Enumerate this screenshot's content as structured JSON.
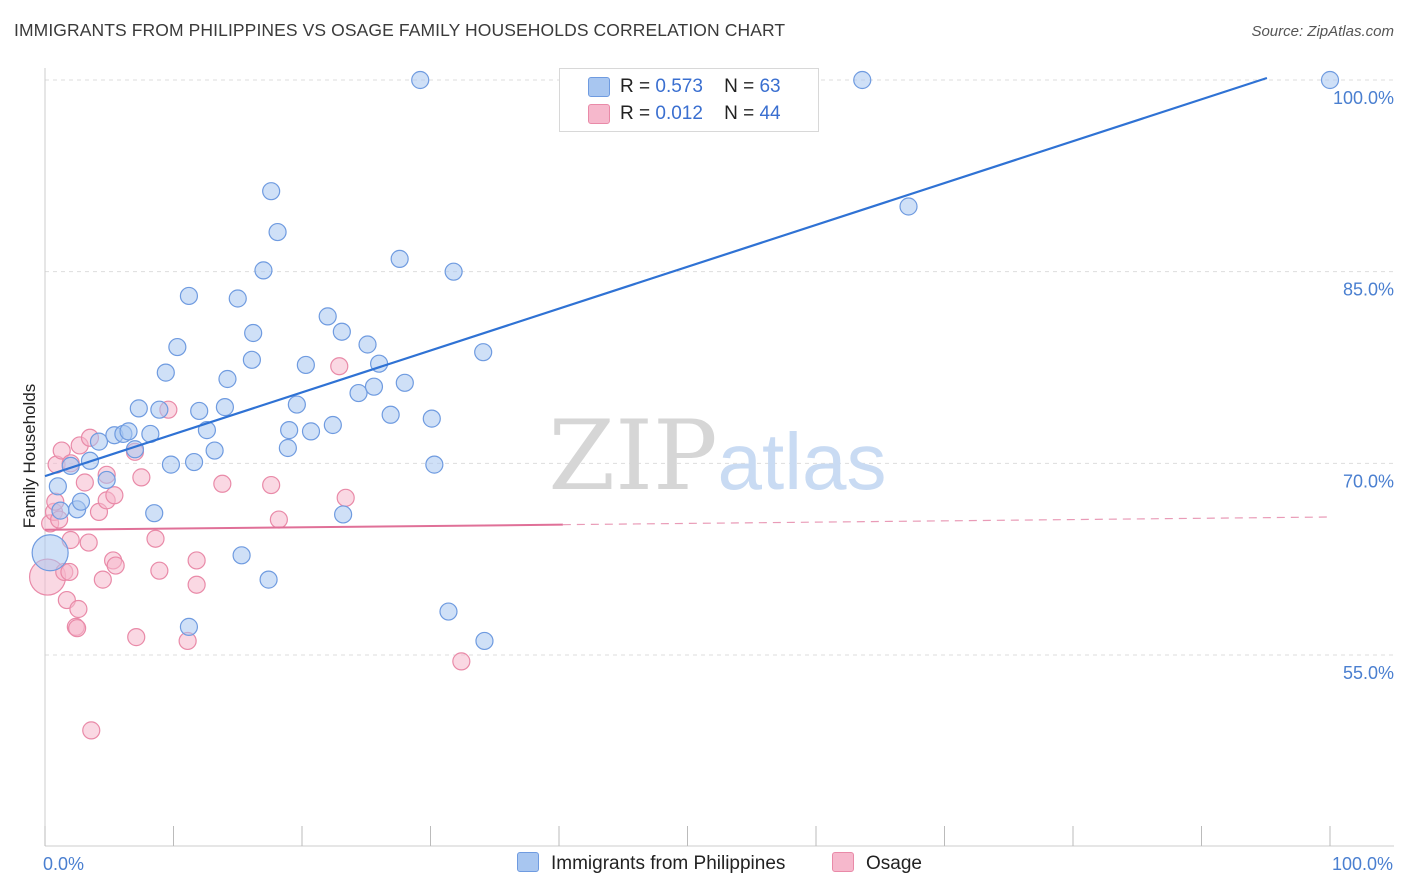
{
  "title": "IMMIGRANTS FROM PHILIPPINES VS OSAGE FAMILY HOUSEHOLDS CORRELATION CHART",
  "source": "Source: ZipAtlas.com",
  "watermark": {
    "zip": "ZIP",
    "atlas": "atlas"
  },
  "legend": {
    "rows": [
      {
        "r_label": "R =",
        "r_value": "0.573",
        "n_label": "N =",
        "n_value": "63"
      },
      {
        "r_label": "R =",
        "r_value": "0.012",
        "n_label": "N =",
        "n_value": "44"
      }
    ]
  },
  "bottom_legend": {
    "series1": "Immigrants from Philippines",
    "series2": "Osage"
  },
  "colors": {
    "blue_fill": "#a8c6f0",
    "blue_stroke": "#6f9be0",
    "blue_line": "#2f72d4",
    "pink_fill": "#f6b8cc",
    "pink_stroke": "#e98aa8",
    "pink_line": "#e07098",
    "tick_text": "#4a7fd0",
    "grid": "#dddddd"
  },
  "chart_data": {
    "type": "scatter",
    "title": "IMMIGRANTS FROM PHILIPPINES VS OSAGE FAMILY HOUSEHOLDS CORRELATION CHART",
    "xlabel": "",
    "ylabel": "Family Households",
    "xlim": [
      0,
      100
    ],
    "ylim": [
      40,
      102
    ],
    "x_tick_labels": [
      "0.0%",
      "100.0%"
    ],
    "y_ticks": [
      55,
      70,
      85,
      100
    ],
    "y_tick_labels": [
      "55.0%",
      "70.0%",
      "85.0%",
      "100.0%"
    ],
    "grid": "horizontal dashed",
    "legend_placement": "top-center",
    "series": [
      {
        "name": "Immigrants from Philippines",
        "color": "#a8c6f0",
        "R": 0.573,
        "N": 63,
        "trend": {
          "x": [
            0,
            100
          ],
          "y": [
            69.0,
            101.6
          ],
          "style": "solid"
        },
        "points": [
          [
            0.4,
            63.0,
            "large"
          ],
          [
            1.0,
            68.2
          ],
          [
            1.2,
            66.3
          ],
          [
            2.0,
            69.8
          ],
          [
            2.5,
            66.4
          ],
          [
            2.8,
            67.0
          ],
          [
            3.5,
            70.2
          ],
          [
            4.2,
            71.7
          ],
          [
            4.8,
            68.7
          ],
          [
            5.4,
            72.2
          ],
          [
            6.1,
            72.3
          ],
          [
            6.5,
            72.5
          ],
          [
            7.0,
            71.1
          ],
          [
            7.3,
            74.3
          ],
          [
            8.2,
            72.3
          ],
          [
            8.5,
            66.1
          ],
          [
            8.9,
            74.2
          ],
          [
            9.4,
            77.1
          ],
          [
            9.8,
            69.9
          ],
          [
            10.3,
            79.1
          ],
          [
            11.2,
            83.1
          ],
          [
            11.6,
            70.1
          ],
          [
            11.2,
            57.2
          ],
          [
            12.0,
            74.1
          ],
          [
            12.6,
            72.6
          ],
          [
            13.2,
            71.0
          ],
          [
            14.0,
            74.4
          ],
          [
            14.2,
            76.6
          ],
          [
            15.0,
            82.9
          ],
          [
            15.3,
            62.8
          ],
          [
            16.1,
            78.1
          ],
          [
            16.2,
            80.2
          ],
          [
            17.0,
            85.1
          ],
          [
            17.4,
            60.9
          ],
          [
            17.6,
            91.3
          ],
          [
            18.1,
            88.1
          ],
          [
            18.9,
            71.2
          ],
          [
            19.0,
            72.6
          ],
          [
            19.6,
            74.6
          ],
          [
            20.3,
            77.7
          ],
          [
            20.7,
            72.5
          ],
          [
            22.0,
            81.5
          ],
          [
            22.4,
            73.0
          ],
          [
            23.1,
            80.3
          ],
          [
            23.2,
            66.0
          ],
          [
            24.4,
            75.5
          ],
          [
            25.1,
            79.3
          ],
          [
            25.6,
            76.0
          ],
          [
            26.0,
            77.8
          ],
          [
            26.9,
            73.8
          ],
          [
            27.6,
            86.0
          ],
          [
            28.0,
            76.3
          ],
          [
            29.2,
            100.0
          ],
          [
            30.1,
            73.5
          ],
          [
            30.3,
            69.9
          ],
          [
            31.4,
            58.4
          ],
          [
            31.8,
            85.0
          ],
          [
            34.1,
            78.7
          ],
          [
            34.2,
            56.1
          ],
          [
            63.6,
            100.0
          ],
          [
            67.2,
            90.1
          ],
          [
            100.0,
            100.0
          ]
        ]
      },
      {
        "name": "Osage",
        "color": "#f6b8cc",
        "R": 0.012,
        "N": 44,
        "trend": {
          "x": [
            0,
            40.3,
            100
          ],
          "y": [
            64.8,
            65.2,
            65.8
          ],
          "style": "solid-then-dashed"
        },
        "points": [
          [
            0.2,
            61.1,
            "large"
          ],
          [
            0.4,
            65.3
          ],
          [
            0.7,
            66.2
          ],
          [
            0.8,
            67.0
          ],
          [
            0.9,
            69.9
          ],
          [
            1.1,
            65.6
          ],
          [
            1.3,
            71.0
          ],
          [
            1.5,
            61.5
          ],
          [
            1.7,
            59.3
          ],
          [
            2.0,
            64.0
          ],
          [
            1.9,
            61.5
          ],
          [
            2.0,
            70.0
          ],
          [
            2.4,
            57.2
          ],
          [
            2.5,
            57.1
          ],
          [
            2.6,
            58.6
          ],
          [
            2.7,
            71.4
          ],
          [
            3.1,
            68.5
          ],
          [
            3.4,
            63.8
          ],
          [
            3.5,
            72.0
          ],
          [
            3.6,
            49.1
          ],
          [
            4.2,
            66.2
          ],
          [
            4.5,
            60.9
          ],
          [
            4.8,
            67.1
          ],
          [
            4.8,
            69.1
          ],
          [
            5.3,
            62.4
          ],
          [
            5.4,
            67.5
          ],
          [
            5.5,
            62.0
          ],
          [
            7.0,
            70.9
          ],
          [
            7.1,
            56.4
          ],
          [
            7.5,
            68.9
          ],
          [
            8.6,
            64.1
          ],
          [
            8.9,
            61.6
          ],
          [
            9.6,
            74.2
          ],
          [
            11.1,
            56.1
          ],
          [
            11.8,
            62.4
          ],
          [
            11.8,
            60.5
          ],
          [
            13.8,
            68.4
          ],
          [
            17.6,
            68.3
          ],
          [
            18.2,
            65.6
          ],
          [
            22.9,
            77.6
          ],
          [
            23.4,
            67.3
          ],
          [
            32.4,
            54.5
          ]
        ]
      }
    ]
  }
}
